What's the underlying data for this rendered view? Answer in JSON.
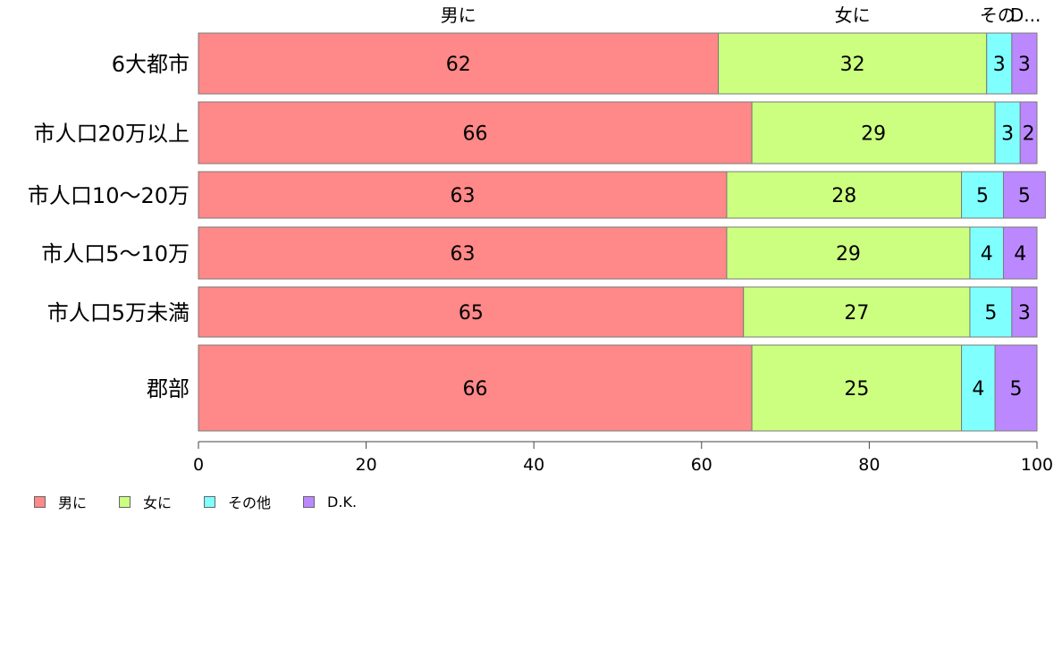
{
  "chart_data": {
    "type": "bar",
    "orientation": "horizontal",
    "stacked": true,
    "categories": [
      "6大都市",
      "市人口20万以上",
      "市人口10〜20万",
      "市人口5〜10万",
      "市人口5万未満",
      "郡部"
    ],
    "series": [
      {
        "name": "男に",
        "color": "#ff8888",
        "values": [
          62,
          66,
          63,
          63,
          65,
          66
        ]
      },
      {
        "name": "女に",
        "color": "#ccff80",
        "values": [
          32,
          29,
          28,
          29,
          27,
          25
        ]
      },
      {
        "name": "その他",
        "color": "#80ffff",
        "values": [
          3,
          3,
          5,
          4,
          5,
          4
        ]
      },
      {
        "name": "D.K.",
        "color": "#bb88ff",
        "values": [
          3,
          2,
          5,
          4,
          3,
          5
        ]
      }
    ],
    "top_labels": [
      "男に",
      "女に",
      "その",
      "D..."
    ],
    "xlim": [
      0,
      100
    ],
    "xticks": [
      0,
      20,
      40,
      60,
      80,
      100
    ],
    "grid": false,
    "legend_position": "bottom-left"
  }
}
